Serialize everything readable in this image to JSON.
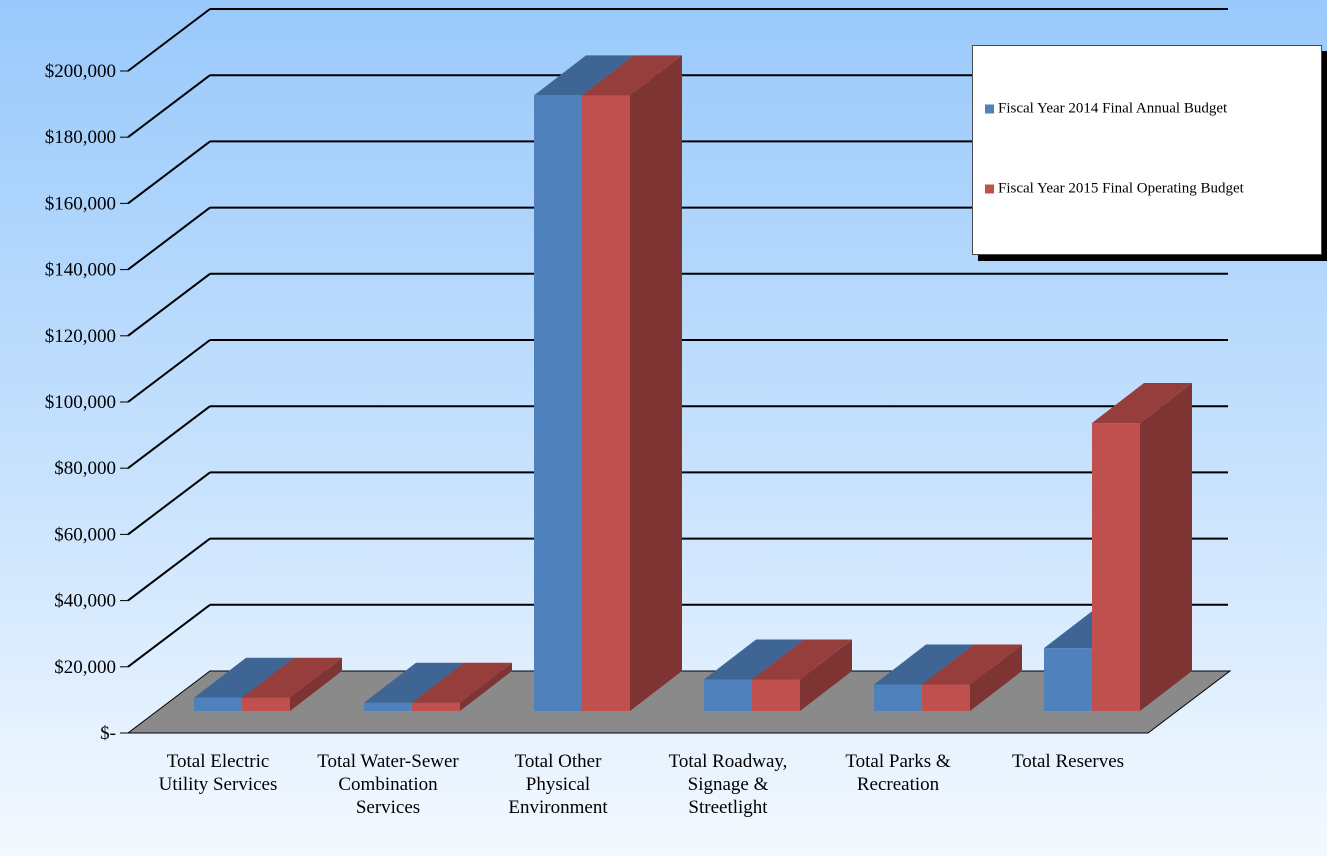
{
  "chart_data": {
    "type": "bar",
    "categories": [
      "Total Electric Utility Services",
      "Total Water-Sewer Combination Services",
      "Total Other Physical Environment",
      "Total Roadway, Signage & Streetlight",
      "Total Parks & Recreation",
      "Total Reserves"
    ],
    "series": [
      {
        "name": "Fiscal Year 2014 Final Annual Budget",
        "values": [
          4000,
          2500,
          186000,
          9500,
          8000,
          19000
        ],
        "color": "#4f81bd"
      },
      {
        "name": "Fiscal Year 2015 Final Operating Budget",
        "values": [
          4000,
          2500,
          186000,
          9500,
          8000,
          87000
        ],
        "color": "#c0504d"
      }
    ],
    "y_ticks": [
      0,
      20000,
      40000,
      60000,
      80000,
      100000,
      120000,
      140000,
      160000,
      180000,
      200000
    ],
    "y_tick_labels": [
      "$-",
      "$20,000",
      "$40,000",
      "$60,000",
      "$80,000",
      "$100,000",
      "$120,000",
      "$140,000",
      "$160,000",
      "$180,000",
      "$200,000"
    ],
    "ylim": [
      0,
      200000
    ],
    "grid": true,
    "legend_position": "right",
    "style": "3d-clustered-column",
    "colors": {
      "floor": "#8a8a8a",
      "grid_line": "#000000"
    }
  }
}
